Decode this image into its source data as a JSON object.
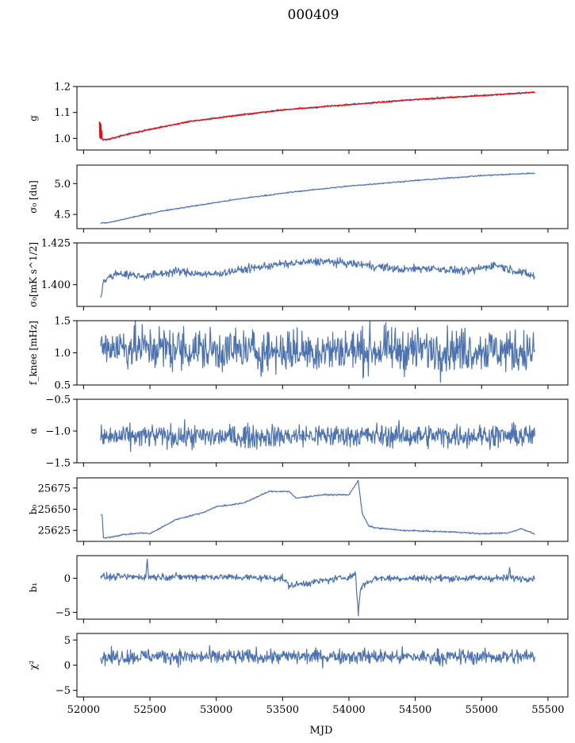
{
  "figure": {
    "title": "000409",
    "xlabel": "MJD",
    "x_ticks": [
      "52000",
      "52500",
      "53000",
      "53500",
      "54000",
      "54500",
      "55000",
      "55500"
    ]
  },
  "colors": {
    "series": "#4c72b0",
    "highlight": "#ff0000"
  },
  "chart_data": [
    {
      "type": "line",
      "ylabel": "g",
      "xlim": [
        51950,
        55650
      ],
      "ylim": [
        0.955,
        1.2
      ],
      "yticks": [
        1.0,
        1.1,
        1.2
      ],
      "ytick_labels": [
        "1.0",
        "1.1",
        "1.2"
      ],
      "series": [
        {
          "color": "#4c72b0",
          "noise": 0.002,
          "x": [
            52120,
            52150,
            52200,
            52300,
            52500,
            52800,
            53100,
            53500,
            54000,
            54500,
            55000,
            55400
          ],
          "y": [
            1.005,
            0.995,
            0.998,
            1.012,
            1.035,
            1.065,
            1.085,
            1.11,
            1.13,
            1.15,
            1.165,
            1.178
          ]
        },
        {
          "color": "#ff0000",
          "noise": 0.001,
          "x": [
            52120,
            52122,
            52125,
            52128,
            52131,
            52134,
            52137,
            52140,
            52150,
            52200,
            52300,
            52500,
            52800,
            53100,
            53500,
            54000,
            54500,
            55000,
            55400
          ],
          "y": [
            1.065,
            1.005,
            1.06,
            1.0,
            1.055,
            1.0,
            1.03,
            0.997,
            0.995,
            0.998,
            1.012,
            1.035,
            1.065,
            1.085,
            1.11,
            1.13,
            1.15,
            1.165,
            1.178
          ]
        }
      ]
    },
    {
      "type": "line",
      "ylabel": "σ₀ [du]",
      "xlim": [
        51950,
        55650
      ],
      "ylim": [
        4.27,
        5.3
      ],
      "yticks": [
        4.5,
        5.0
      ],
      "ytick_labels": [
        "4.5",
        "5.0"
      ],
      "series": [
        {
          "color": "#4c72b0",
          "noise": 0.005,
          "x": [
            52130,
            52200,
            52400,
            52600,
            52900,
            53200,
            53600,
            54000,
            54500,
            55000,
            55400
          ],
          "y": [
            4.36,
            4.37,
            4.47,
            4.56,
            4.66,
            4.76,
            4.87,
            4.96,
            5.05,
            5.13,
            5.17
          ]
        }
      ]
    },
    {
      "type": "line",
      "ylabel": "σ₀[mK s^1/2]",
      "xlim": [
        51950,
        55650
      ],
      "ylim": [
        1.387,
        1.425
      ],
      "yticks": [
        1.4,
        1.425
      ],
      "ytick_labels": [
        "1.400",
        "1.425"
      ],
      "series": [
        {
          "color": "#4c72b0",
          "noise": 0.0012,
          "x": [
            52130,
            52150,
            52250,
            52450,
            52700,
            52950,
            53200,
            53450,
            53800,
            54100,
            54400,
            54600,
            54900,
            55100,
            55400
          ],
          "y": [
            1.393,
            1.402,
            1.407,
            1.405,
            1.408,
            1.406,
            1.409,
            1.412,
            1.414,
            1.412,
            1.409,
            1.41,
            1.408,
            1.412,
            1.405
          ]
        }
      ]
    },
    {
      "type": "line",
      "ylabel": "f_knee [mHz]",
      "xlim": [
        51950,
        55650
      ],
      "ylim": [
        0.5,
        1.5
      ],
      "yticks": [
        0.5,
        1.0,
        1.5
      ],
      "ytick_labels": [
        "0.5",
        "1.0",
        "1.5"
      ],
      "series": [
        {
          "color": "#4c72b0",
          "noise": 0.17,
          "x": [
            52130,
            52500,
            53000,
            53500,
            54000,
            54500,
            55000,
            55400
          ],
          "y": [
            1.1,
            1.08,
            1.04,
            1.03,
            1.04,
            1.05,
            1.05,
            1.02
          ]
        }
      ]
    },
    {
      "type": "line",
      "ylabel": "α",
      "xlim": [
        51950,
        55650
      ],
      "ylim": [
        -1.5,
        -0.5
      ],
      "yticks": [
        -1.5,
        -1.0,
        -0.5
      ],
      "ytick_labels": [
        "−1.5",
        "−1.0",
        "−0.5"
      ],
      "series": [
        {
          "color": "#4c72b0",
          "noise": 0.09,
          "x": [
            52130,
            52500,
            53000,
            53500,
            54000,
            54500,
            55000,
            55400
          ],
          "y": [
            -1.1,
            -1.08,
            -1.09,
            -1.08,
            -1.07,
            -1.08,
            -1.07,
            -1.08
          ]
        }
      ]
    },
    {
      "type": "line",
      "ylabel": "b₀",
      "xlim": [
        51950,
        55650
      ],
      "ylim": [
        25612,
        25687
      ],
      "yticks": [
        25625,
        25650,
        25675
      ],
      "ytick_labels": [
        "25625",
        "25650",
        "25675"
      ],
      "series": [
        {
          "color": "#4c72b0",
          "noise": 0.4,
          "x": [
            52130,
            52140,
            52150,
            52200,
            52300,
            52450,
            52500,
            52700,
            52900,
            53000,
            53200,
            53300,
            53400,
            53550,
            53600,
            53800,
            54000,
            54070,
            54100,
            54150,
            54200,
            54400,
            54600,
            54800,
            55000,
            55200,
            55300,
            55400
          ],
          "y": [
            25644,
            25643,
            25616,
            25617,
            25620,
            25622,
            25621,
            25638,
            25646,
            25653,
            25657,
            25664,
            25671,
            25671,
            25663,
            25667,
            25667,
            25684,
            25645,
            25630,
            25628,
            25625,
            25624,
            25623,
            25621,
            25622,
            25627,
            25621
          ]
        }
      ]
    },
    {
      "type": "line",
      "ylabel": "b₁",
      "xlim": [
        51950,
        55650
      ],
      "ylim": [
        -6,
        3.3
      ],
      "yticks": [
        -5,
        0
      ],
      "ytick_labels": [
        "−5",
        "0"
      ],
      "series": [
        {
          "color": "#4c72b0",
          "noise": 0.25,
          "x": [
            52130,
            52470,
            52480,
            52490,
            53000,
            53500,
            53550,
            54000,
            54050,
            54070,
            54080,
            54090,
            54100,
            54150,
            54200,
            55200,
            55210,
            55220,
            55400
          ],
          "y": [
            0.2,
            0.2,
            2.8,
            0.2,
            0.2,
            0.0,
            -1.1,
            0.2,
            0.6,
            -5.3,
            -3.0,
            -1.5,
            -1.1,
            -0.5,
            0.0,
            0.0,
            1.5,
            0.0,
            0.0
          ]
        }
      ]
    },
    {
      "type": "line",
      "ylabel": "χ²",
      "xlim": [
        51950,
        55650
      ],
      "ylim": [
        -6.3,
        6.3
      ],
      "yticks": [
        -5,
        0,
        5
      ],
      "ytick_labels": [
        "−5",
        "0",
        "5"
      ],
      "series": [
        {
          "color": "#4c72b0",
          "noise": 0.75,
          "x": [
            52130,
            52500,
            53000,
            53500,
            54000,
            54500,
            55000,
            55400
          ],
          "y": [
            1.5,
            1.8,
            1.6,
            1.7,
            1.8,
            1.6,
            1.7,
            1.7
          ]
        }
      ]
    }
  ]
}
